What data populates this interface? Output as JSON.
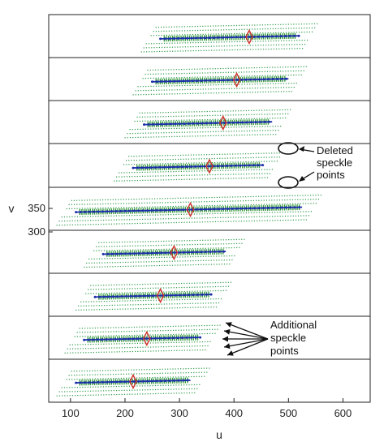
{
  "chart_data": {
    "type": "scatter",
    "title": "",
    "xlabel": "u",
    "ylabel": "v",
    "xlim": [
      60,
      650
    ],
    "x_ticks": [
      "100",
      "200",
      "300",
      "400",
      "500",
      "600"
    ],
    "y_ticks": [
      "350",
      "300"
    ],
    "grid": false,
    "panels": [
      {
        "center_u": 428,
        "line_start_u": 265,
        "line_end_u": 520
      },
      {
        "center_u": 405,
        "line_start_u": 250,
        "line_end_u": 500
      },
      {
        "center_u": 380,
        "line_start_u": 235,
        "line_end_u": 470
      },
      {
        "center_u": 355,
        "line_start_u": 215,
        "line_end_u": 455
      },
      {
        "center_u": 320,
        "line_start_u": 110,
        "line_end_u": 525
      },
      {
        "center_u": 290,
        "line_start_u": 160,
        "line_end_u": 385
      },
      {
        "center_u": 265,
        "line_start_u": 145,
        "line_end_u": 360
      },
      {
        "center_u": 240,
        "line_start_u": 125,
        "line_end_u": 340
      },
      {
        "center_u": 215,
        "line_start_u": 110,
        "line_end_u": 320
      }
    ],
    "annotations": [
      {
        "text_lines": [
          "Deleted",
          "speckle",
          "points"
        ]
      },
      {
        "text_lines": [
          "Additional",
          "speckle",
          "points"
        ]
      }
    ]
  }
}
